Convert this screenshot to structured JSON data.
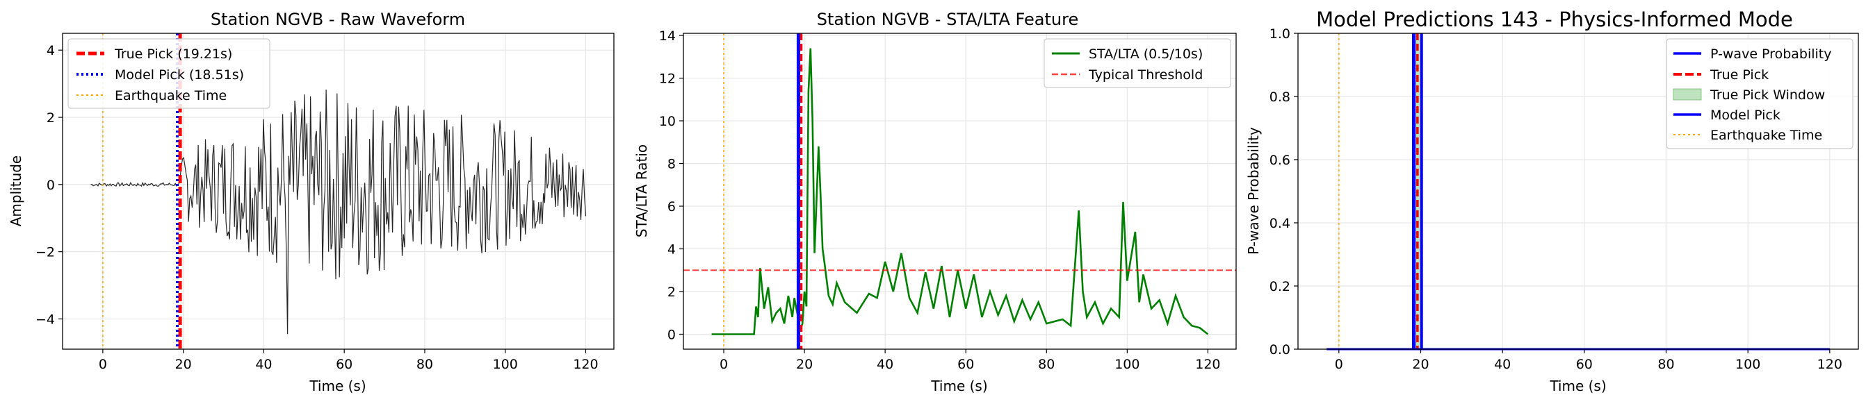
{
  "chart_data": [
    {
      "type": "line",
      "title": "Station NGVB - Raw Waveform",
      "xlabel": "Time (s)",
      "ylabel": "Amplitude",
      "xlim": [
        -10,
        127
      ],
      "ylim": [
        -4.9,
        4.5
      ],
      "xticks": [
        0,
        20,
        40,
        60,
        80,
        100,
        120
      ],
      "yticks": [
        -4,
        -2,
        0,
        2,
        4
      ],
      "grid": true,
      "legend_position": "upper-left",
      "series": [
        {
          "name": "",
          "color": "#000000",
          "x_range": [
            -3,
            120
          ],
          "amplitude_profile": [
            [
              -3,
              0.05
            ],
            [
              19,
              0.06
            ],
            [
              20,
              1.1
            ],
            [
              30,
              1.6
            ],
            [
              45,
              2.6
            ],
            [
              60,
              3.0
            ],
            [
              80,
              2.4
            ],
            [
              100,
              1.9
            ],
            [
              120,
              1.0
            ]
          ],
          "max": 3.7,
          "min": -4.45,
          "min_at": 46
        }
      ],
      "vlines": [
        {
          "name": "True Pick (19.21s)",
          "x": 19.21,
          "color": "#ff0000",
          "style": "dashed"
        },
        {
          "name": "Model Pick (18.51s)",
          "x": 18.51,
          "color": "#0000ff",
          "style": "dotted"
        },
        {
          "name": "Earthquake Time",
          "x": 0,
          "color": "#ffa500",
          "style": "dotted"
        }
      ]
    },
    {
      "type": "line",
      "title": "Station NGVB - STA/LTA Feature",
      "xlabel": "Time (s)",
      "ylabel": "STA/LTA Ratio",
      "xlim": [
        -10,
        127
      ],
      "ylim": [
        -0.7,
        14.1
      ],
      "xticks": [
        0,
        20,
        40,
        60,
        80,
        100,
        120
      ],
      "yticks": [
        0,
        2,
        4,
        6,
        8,
        10,
        12,
        14
      ],
      "grid": true,
      "legend_position": "upper-right",
      "series": [
        {
          "name": "STA/LTA (0.5/10s)",
          "color": "#008000",
          "x": [
            -3,
            7.5,
            8,
            8.5,
            9,
            10,
            11,
            12,
            13,
            14,
            15,
            16,
            17,
            17.5,
            18,
            19,
            19.5,
            20,
            20.5,
            21,
            21.5,
            22,
            22.5,
            23,
            23.5,
            24,
            24.5,
            25,
            26,
            27,
            28,
            30,
            33,
            36,
            38,
            40,
            42,
            44,
            46,
            48,
            50,
            52,
            54,
            56,
            58,
            60,
            62,
            64,
            66,
            68,
            70,
            72,
            74,
            76,
            78,
            80,
            82,
            84,
            86,
            88,
            89,
            90,
            92,
            94,
            96,
            98,
            99,
            100,
            102,
            103,
            104,
            106,
            108,
            110,
            112,
            114,
            116,
            118,
            120
          ],
          "y": [
            0,
            0,
            1.3,
            0.8,
            3.1,
            1.2,
            2.2,
            0.6,
            1.0,
            1.2,
            0.5,
            1.8,
            0.8,
            1.7,
            1.2,
            0.2,
            0.5,
            2.0,
            1.3,
            11.4,
            13.4,
            10.0,
            3.8,
            6.3,
            8.8,
            6.5,
            4.0,
            3.3,
            1.8,
            1.4,
            2.4,
            1.5,
            1.0,
            1.9,
            1.7,
            3.4,
            2.0,
            3.8,
            1.7,
            1.0,
            2.9,
            1.2,
            3.2,
            0.8,
            3.0,
            1.2,
            2.8,
            0.8,
            2.0,
            0.9,
            1.8,
            0.6,
            1.6,
            0.7,
            1.5,
            0.5,
            0.6,
            0.7,
            0.4,
            5.8,
            2.0,
            0.8,
            1.5,
            0.5,
            1.2,
            0.8,
            6.2,
            2.5,
            4.8,
            1.5,
            2.8,
            1.2,
            1.6,
            0.5,
            1.8,
            0.8,
            0.4,
            0.3,
            0
          ]
        }
      ],
      "hlines": [
        {
          "name": "Typical Threshold",
          "y": 3.0,
          "color": "#ff0000",
          "style": "dashed"
        }
      ],
      "vlines": [
        {
          "name": "",
          "x": 19.21,
          "color": "#ff0000",
          "style": "dashed"
        },
        {
          "name": "",
          "x": 18.51,
          "color": "#0000ff",
          "style": "solid"
        },
        {
          "name": "",
          "x": 0,
          "color": "#ffa500",
          "style": "dotted"
        }
      ]
    },
    {
      "type": "line",
      "title": "Model Predictions 143 - Physics-Informed Mode",
      "xlabel": "Time (s)",
      "ylabel": "P-wave Probability",
      "xlim": [
        -10,
        127
      ],
      "ylim": [
        0,
        1.0
      ],
      "xticks": [
        0,
        20,
        40,
        60,
        80,
        100,
        120
      ],
      "yticks": [
        0.0,
        0.2,
        0.4,
        0.6,
        0.8,
        1.0
      ],
      "grid": true,
      "legend_position": "upper-right",
      "series": [
        {
          "name": "P-wave Probability",
          "color": "#0000ff",
          "x": [
            -3,
            120
          ],
          "y": [
            0,
            0
          ]
        }
      ],
      "vlines": [
        {
          "name": "True Pick",
          "x": 19.21,
          "color": "#ff0000",
          "style": "dashed"
        },
        {
          "name": "Model Pick",
          "x": 18.51,
          "color": "#0000ff",
          "style": "solid"
        },
        {
          "name": "Earthquake Time",
          "x": 0,
          "color": "#ffa500",
          "style": "dotted"
        }
      ],
      "spans": [
        {
          "name": "True Pick Window",
          "x0": 18.21,
          "x1": 20.21,
          "color": "#2ca02c"
        }
      ]
    }
  ],
  "legend_labels": {
    "p1": [
      "True Pick (19.21s)",
      "Model Pick (18.51s)",
      "Earthquake Time"
    ],
    "p2": [
      "STA/LTA (0.5/10s)",
      "Typical Threshold"
    ],
    "p3": [
      "P-wave Probability",
      "True Pick",
      "True Pick Window",
      "Model Pick",
      "Earthquake Time"
    ]
  }
}
